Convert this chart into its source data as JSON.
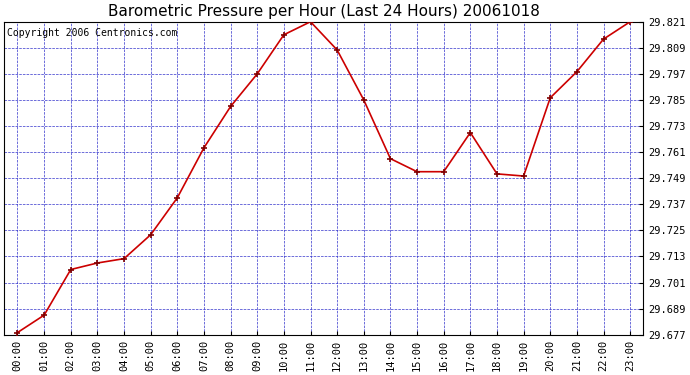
{
  "title": "Barometric Pressure per Hour (Last 24 Hours) 20061018",
  "copyright": "Copyright 2006 Centronics.com",
  "hours": [
    "00:00",
    "01:00",
    "02:00",
    "03:00",
    "04:00",
    "05:00",
    "06:00",
    "07:00",
    "08:00",
    "09:00",
    "10:00",
    "11:00",
    "12:00",
    "13:00",
    "14:00",
    "15:00",
    "16:00",
    "17:00",
    "18:00",
    "19:00",
    "20:00",
    "21:00",
    "22:00",
    "23:00"
  ],
  "values": [
    29.678,
    29.686,
    29.707,
    29.71,
    29.712,
    29.723,
    29.74,
    29.763,
    29.782,
    29.797,
    29.815,
    29.821,
    29.808,
    29.785,
    29.758,
    29.752,
    29.752,
    29.77,
    29.751,
    29.75,
    29.786,
    29.798,
    29.813,
    29.821
  ],
  "y_ticks": [
    29.677,
    29.689,
    29.701,
    29.713,
    29.725,
    29.737,
    29.749,
    29.761,
    29.773,
    29.785,
    29.797,
    29.809,
    29.821
  ],
  "y_min": 29.677,
  "y_max": 29.821,
  "line_color": "#cc0000",
  "marker_color": "#800000",
  "bg_color": "#ffffff",
  "plot_bg_color": "#ffffff",
  "grid_color": "#3333cc",
  "title_color": "#000000",
  "copyright_color": "#000000",
  "title_fontsize": 11,
  "copyright_fontsize": 7,
  "tick_label_fontsize": 7.5
}
